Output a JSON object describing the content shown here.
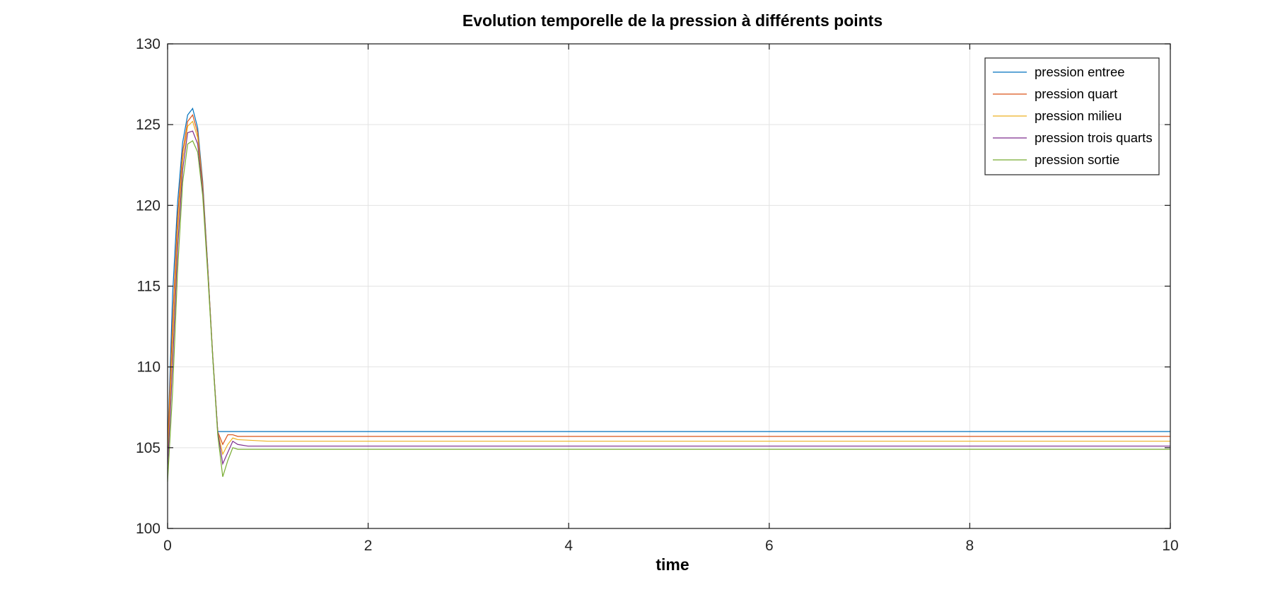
{
  "chart_data": {
    "type": "line",
    "title": "Evolution temporelle de la pression à différents points",
    "xlabel": "time",
    "ylabel": "",
    "xlim": [
      0,
      10
    ],
    "ylim": [
      100,
      130
    ],
    "xticks": [
      0,
      2,
      4,
      6,
      8,
      10
    ],
    "xtick_labels": [
      "0",
      "2",
      "4",
      "6",
      "8",
      "10"
    ],
    "yticks": [
      100,
      105,
      110,
      115,
      120,
      125,
      130
    ],
    "ytick_labels": [
      "100",
      "105",
      "110",
      "115",
      "120",
      "125",
      "130"
    ],
    "grid": true,
    "legend_position": "top-right",
    "series": [
      {
        "name": "pression entree",
        "color": "#0072bd",
        "x": [
          0,
          0.05,
          0.1,
          0.15,
          0.2,
          0.25,
          0.3,
          0.35,
          0.4,
          0.45,
          0.5,
          0.55,
          0.6,
          0.65,
          0.7,
          1,
          10
        ],
        "y": [
          105.0,
          114.5,
          120.2,
          123.9,
          125.6,
          126.0,
          124.8,
          121.5,
          116.3,
          110.6,
          106.0,
          106.0,
          106.0,
          106.0,
          106.0,
          106.0,
          106.0
        ]
      },
      {
        "name": "pression quart",
        "color": "#d95319",
        "x": [
          0,
          0.05,
          0.1,
          0.15,
          0.2,
          0.25,
          0.3,
          0.35,
          0.4,
          0.45,
          0.5,
          0.55,
          0.6,
          0.65,
          0.7,
          1,
          10
        ],
        "y": [
          105.0,
          112.8,
          119.3,
          123.3,
          125.2,
          125.6,
          124.5,
          121.3,
          116.2,
          110.7,
          106.0,
          105.2,
          105.8,
          105.8,
          105.7,
          105.7,
          105.7
        ]
      },
      {
        "name": "pression milieu",
        "color": "#edb120",
        "x": [
          0,
          0.05,
          0.1,
          0.15,
          0.2,
          0.25,
          0.3,
          0.35,
          0.4,
          0.45,
          0.5,
          0.55,
          0.6,
          0.65,
          0.7,
          1,
          10
        ],
        "y": [
          104.3,
          111.5,
          118.4,
          122.8,
          124.9,
          125.2,
          124.2,
          121.1,
          116.1,
          110.7,
          106.0,
          104.6,
          105.2,
          105.6,
          105.5,
          105.4,
          105.4
        ]
      },
      {
        "name": "pression trois quarts",
        "color": "#7e2f8e",
        "x": [
          0,
          0.05,
          0.1,
          0.15,
          0.2,
          0.25,
          0.3,
          0.35,
          0.4,
          0.45,
          0.5,
          0.55,
          0.6,
          0.65,
          0.7,
          0.8,
          1,
          10
        ],
        "y": [
          103.7,
          110.2,
          117.4,
          122.2,
          124.5,
          124.6,
          123.8,
          120.9,
          116.0,
          110.7,
          106.0,
          104.0,
          104.7,
          105.4,
          105.2,
          105.1,
          105.1,
          105.1
        ]
      },
      {
        "name": "pression sortie",
        "color": "#77ac30",
        "x": [
          0,
          0.05,
          0.1,
          0.15,
          0.2,
          0.25,
          0.3,
          0.35,
          0.4,
          0.45,
          0.5,
          0.55,
          0.6,
          0.65,
          0.7,
          0.8,
          1,
          10
        ],
        "y": [
          102.9,
          108.5,
          116.0,
          121.4,
          123.8,
          124.0,
          123.3,
          120.6,
          115.8,
          110.6,
          105.8,
          103.2,
          104.2,
          105.0,
          104.9,
          104.9,
          104.9,
          104.9
        ]
      }
    ]
  }
}
